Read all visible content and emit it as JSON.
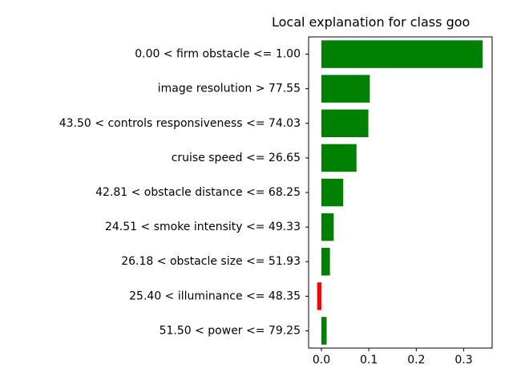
{
  "chart_data": {
    "type": "bar",
    "orientation": "horizontal",
    "title": "Local explanation for class goo",
    "xlabel": "",
    "ylabel": "",
    "xlim": [
      -0.027,
      0.36
    ],
    "xticks": [
      0.0,
      0.1,
      0.2,
      0.3
    ],
    "xtick_labels": [
      "0.0",
      "0.1",
      "0.2",
      "0.3"
    ],
    "grid": false,
    "legend": "none",
    "categories": [
      "0.00 < firm obstacle <= 1.00",
      "image resolution > 77.55",
      "43.50 < controls responsiveness <= 74.03",
      "cruise speed <= 26.65",
      "42.81 < obstacle distance <= 68.25",
      "24.51 < smoke intensity <= 49.33",
      "26.18 < obstacle size <= 51.93",
      "25.40 < illuminance <= 48.35",
      "51.50 < power <= 79.25"
    ],
    "values": [
      0.34,
      0.102,
      0.099,
      0.074,
      0.046,
      0.026,
      0.018,
      -0.009,
      0.011
    ],
    "colors": {
      "positive": "#008000",
      "negative": "#ff0000",
      "axis": "#000000"
    }
  }
}
